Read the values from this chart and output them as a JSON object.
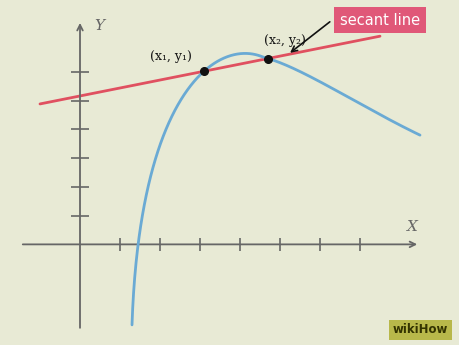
{
  "bg_color": "#e8ead5",
  "curve_color": "#6aaad4",
  "secant_color": "#e05060",
  "axis_color": "#666666",
  "point_color": "#111111",
  "point1_label": "(x₁, y₁)",
  "point2_label": "(x₂, y₂)",
  "secant_label": "secant line",
  "secant_label_bg": "#e05878",
  "secant_label_color": "#ffffff",
  "x_label": "X",
  "y_label": "Y",
  "curve_lw": 2.0,
  "secant_lw": 2.0,
  "axis_lw": 1.3,
  "tick_lw": 1.2,
  "wikihow_text": "wikiHow",
  "wikihow_bg": "#b8b84a",
  "wikihow_color": "#333300"
}
